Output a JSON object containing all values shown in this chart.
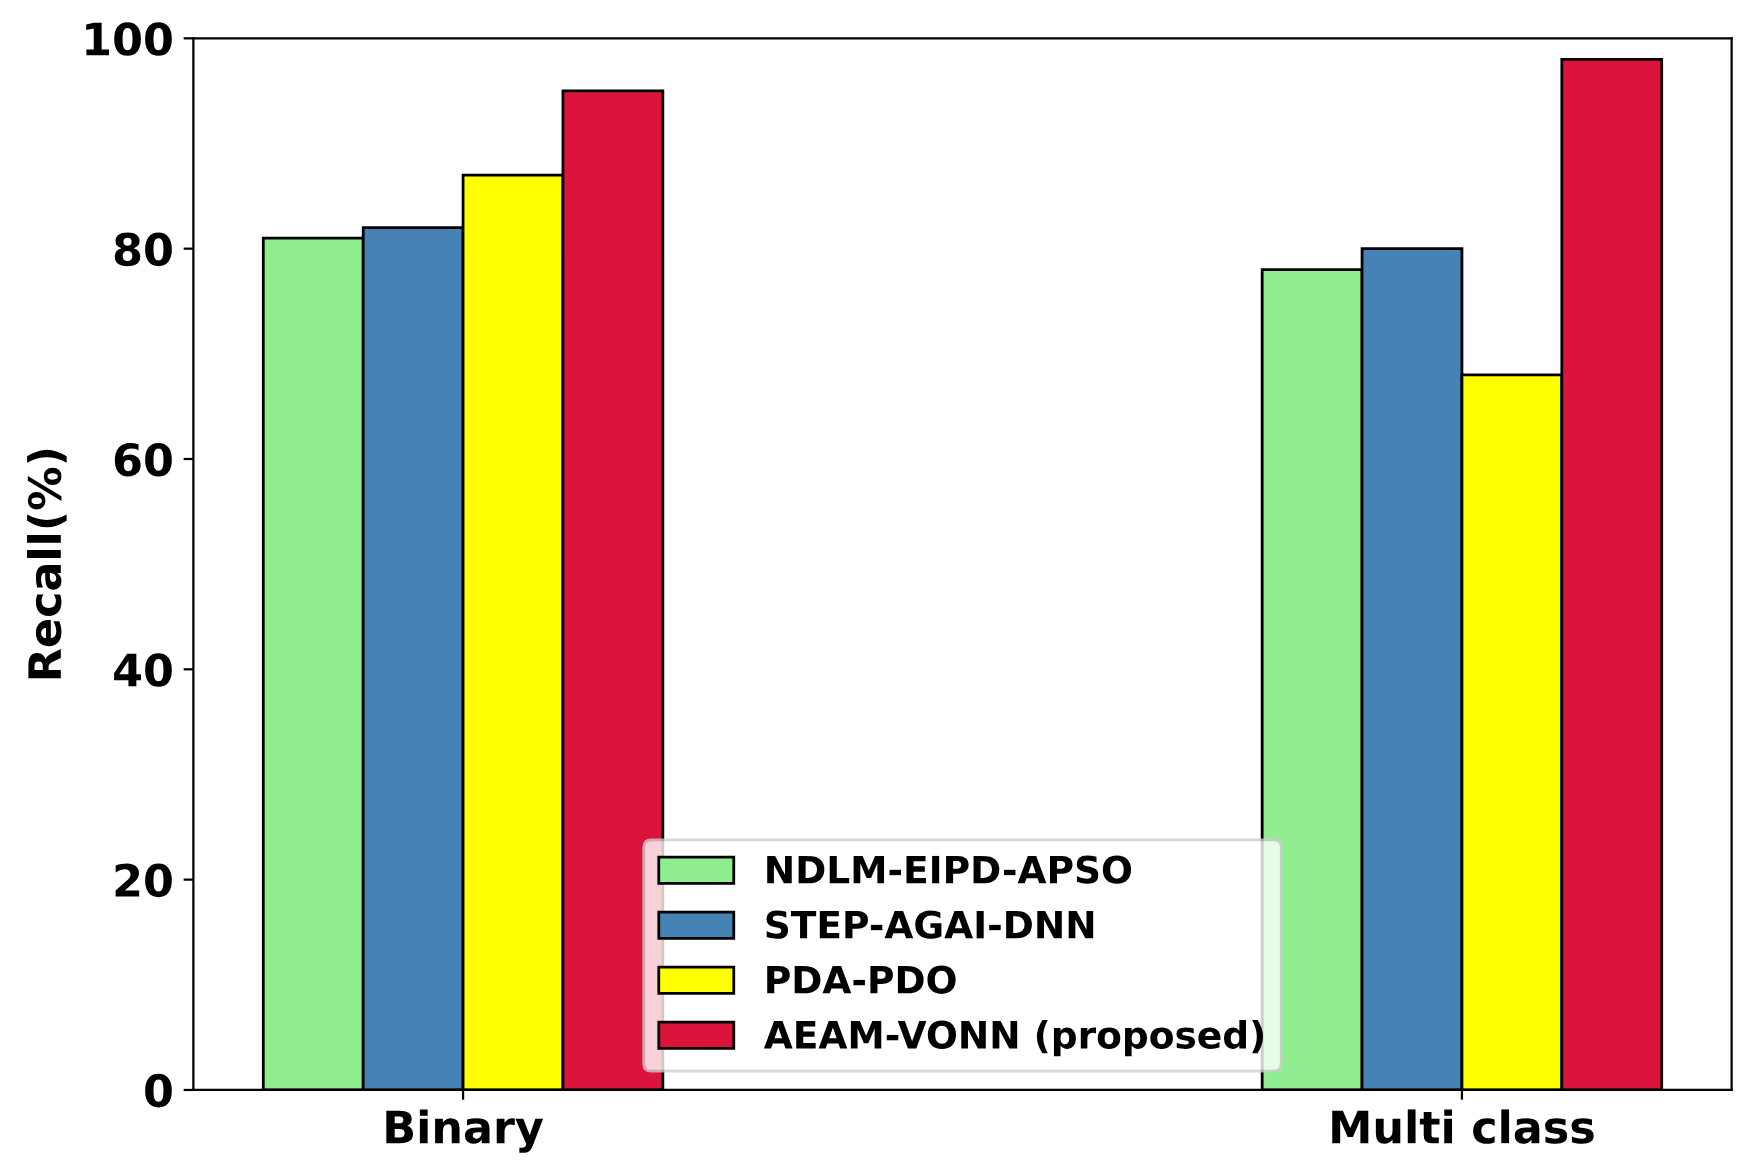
{
  "chart_data": {
    "type": "bar",
    "ylabel": "Recall(%)",
    "categories": [
      "Binary",
      "Multi class"
    ],
    "series": [
      {
        "name": "NDLM-EIPD-APSO",
        "color": "#90ee90",
        "values": [
          81,
          78
        ]
      },
      {
        "name": "STEP-AGAI-DNN",
        "color": "#4682b4",
        "values": [
          82,
          80
        ]
      },
      {
        "name": "PDA-PDO",
        "color": "#ffff00",
        "values": [
          87,
          68
        ]
      },
      {
        "name": "AEAM-VONN (proposed)",
        "color": "#dc143c",
        "values": [
          95,
          98
        ]
      }
    ],
    "ylim": [
      0,
      100
    ],
    "yticks": [
      0,
      20,
      40,
      60,
      80,
      100
    ],
    "grid": false,
    "legend": "bottom"
  }
}
